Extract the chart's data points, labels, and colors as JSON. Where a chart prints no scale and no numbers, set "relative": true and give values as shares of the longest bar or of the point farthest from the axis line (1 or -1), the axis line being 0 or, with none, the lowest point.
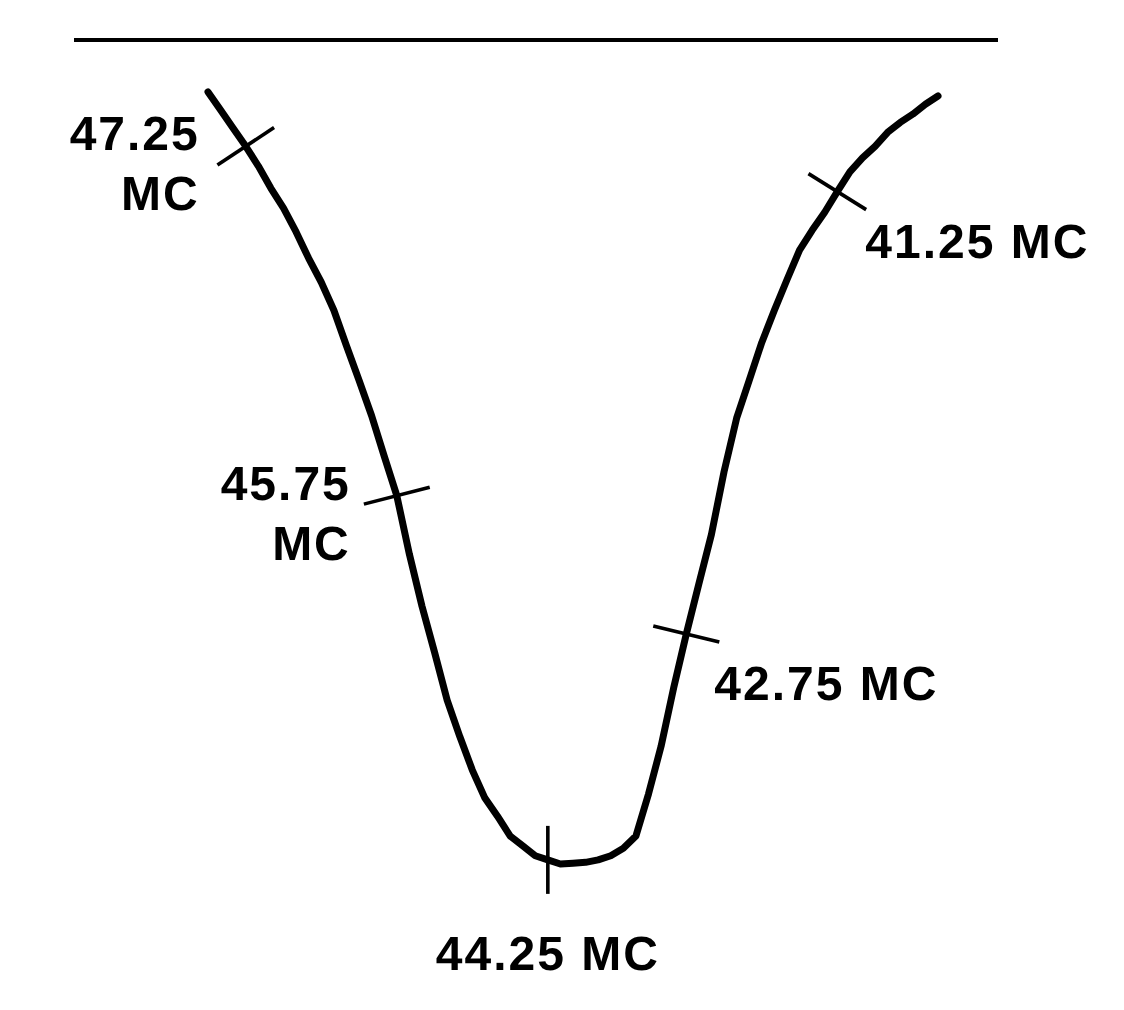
{
  "chart_data": {
    "type": "line",
    "relative": true,
    "color": "#000000",
    "categories": [
      null,
      null,
      null,
      null,
      null,
      null,
      null,
      null,
      null,
      null,
      null,
      null,
      null,
      null,
      null,
      null,
      null,
      null,
      null,
      null,
      null,
      null,
      null,
      null,
      null,
      null,
      null,
      null,
      null,
      null,
      null,
      null,
      null,
      null,
      null,
      null,
      null,
      null,
      null,
      null,
      null,
      null,
      null,
      null,
      null,
      null,
      null,
      null,
      null,
      null,
      null,
      null,
      null,
      null,
      null,
      null,
      null,
      null,
      null
    ],
    "annotations": [
      "47.25 MC",
      "45.75 MC",
      "44.25 MC",
      "42.75 MC",
      "41.25 MC"
    ],
    "values": [
      -0.063,
      -0.085,
      -0.107,
      -0.129,
      -0.153,
      -0.18,
      -0.204,
      -0.233,
      -0.265,
      -0.294,
      -0.328,
      -0.371,
      -0.413,
      -0.456,
      -0.505,
      -0.553,
      -0.624,
      -0.687,
      -0.743,
      -0.801,
      -0.845,
      -0.886,
      -0.92,
      -0.942,
      -0.966,
      -0.978,
      -0.99,
      -0.995,
      -1,
      -0.999,
      -0.998,
      -0.995,
      -0.99,
      -0.981,
      -0.966,
      -0.915,
      -0.857,
      -0.786,
      -0.721,
      -0.66,
      -0.6,
      -0.524,
      -0.459,
      -0.413,
      -0.367,
      -0.328,
      -0.291,
      -0.255,
      -0.231,
      -0.209,
      -0.184,
      -0.16,
      -0.143,
      -0.129,
      -0.112,
      -0.1,
      -0.09,
      -0.078,
      -0.068
    ]
  }
}
